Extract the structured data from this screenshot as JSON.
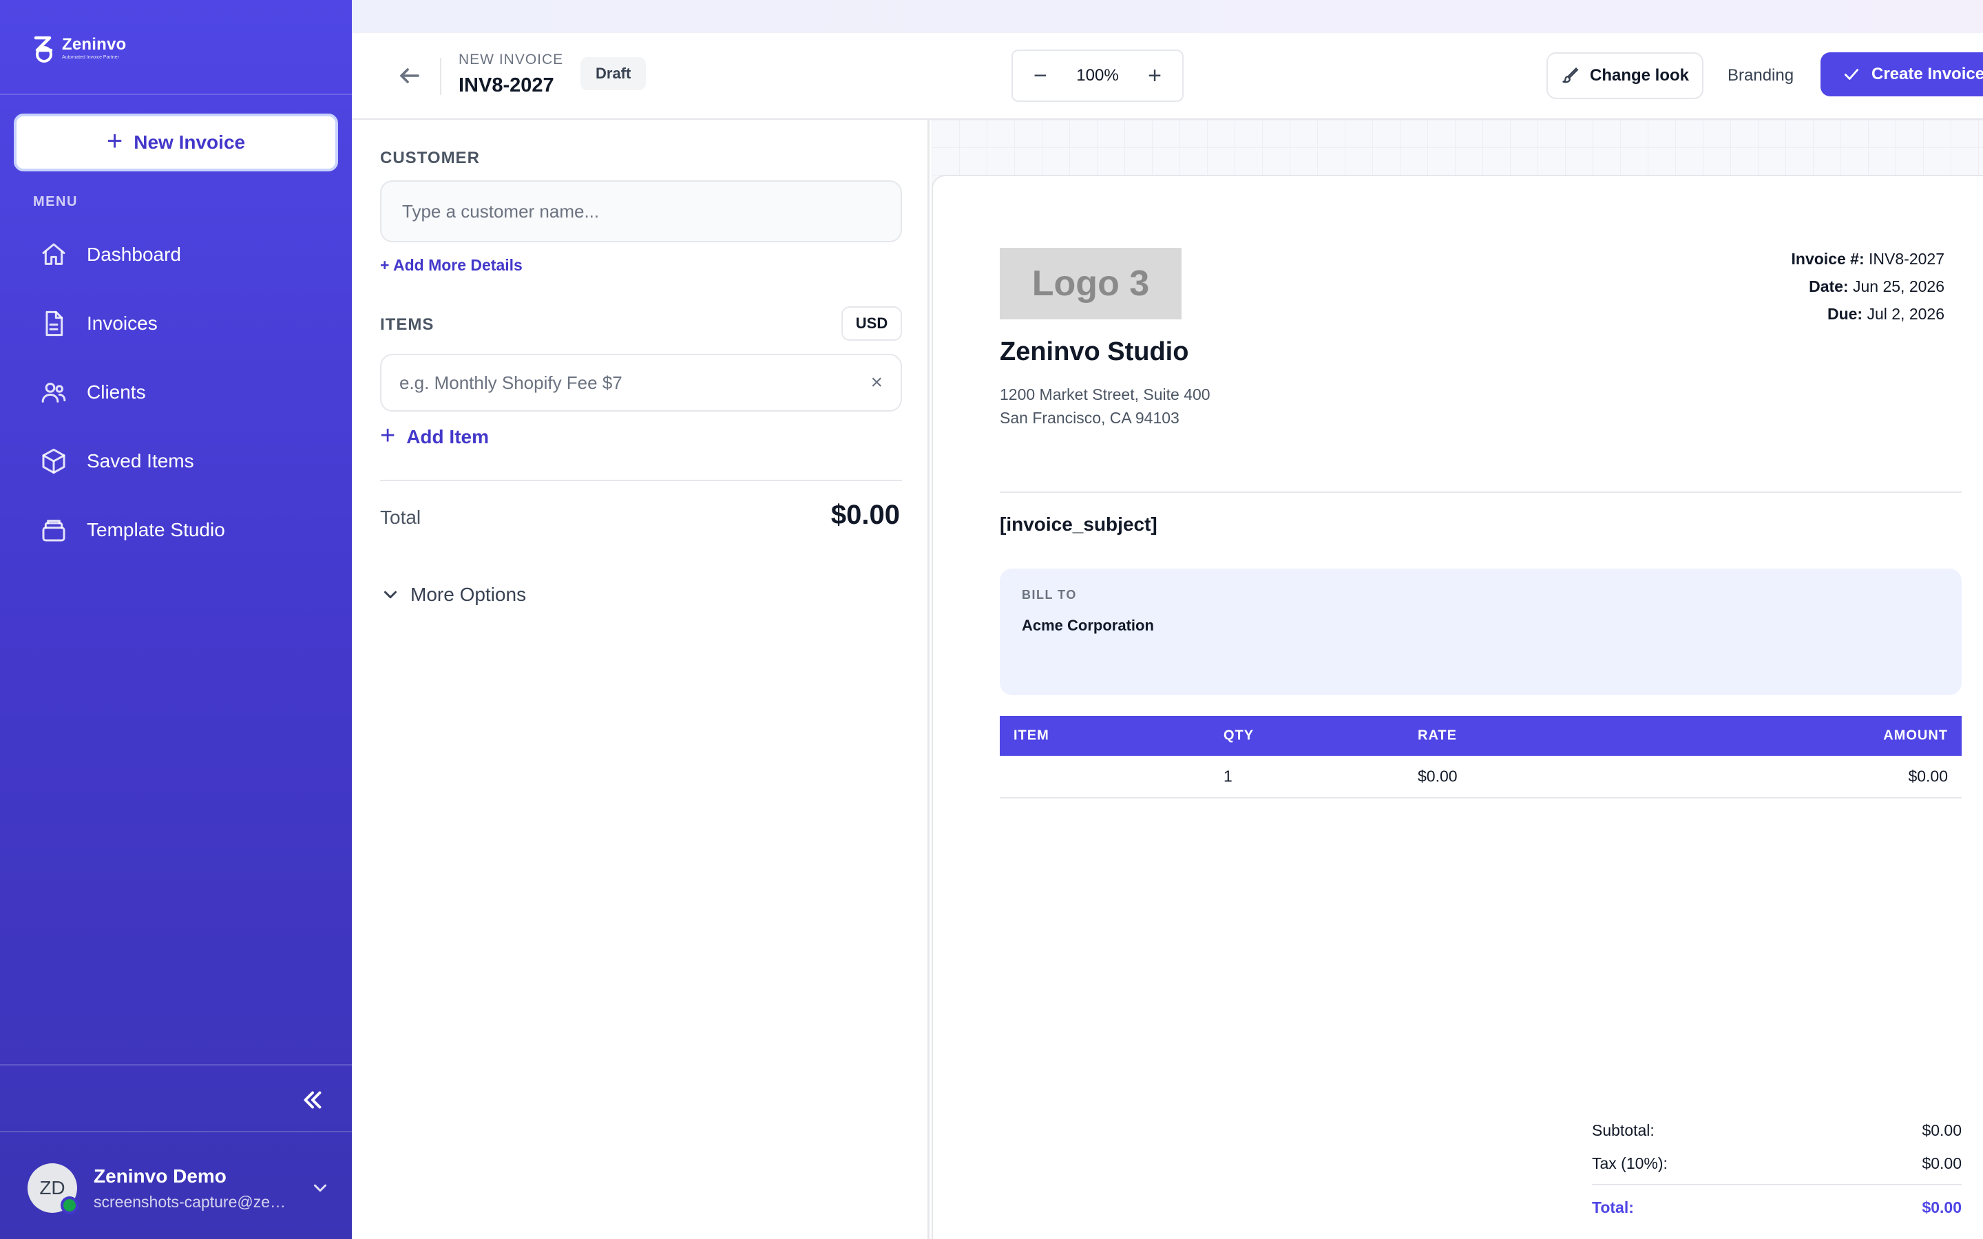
{
  "sidebar": {
    "brand_name": "Zeninvo",
    "brand_tagline": "Automated Invoice Partner",
    "new_invoice_label": "New Invoice",
    "menu_label": "MENU",
    "items": [
      {
        "label": "Dashboard",
        "icon": "home-icon"
      },
      {
        "label": "Invoices",
        "icon": "document-icon"
      },
      {
        "label": "Clients",
        "icon": "users-icon"
      },
      {
        "label": "Saved Items",
        "icon": "box-icon"
      },
      {
        "label": "Template Studio",
        "icon": "layers-icon"
      }
    ],
    "user": {
      "initials": "ZD",
      "name": "Zeninvo Demo",
      "email": "screenshots-capture@zeninvo.com"
    }
  },
  "header": {
    "subtitle": "NEW INVOICE",
    "title": "INV8-2027",
    "status_badge": "Draft",
    "zoom_minus": "−",
    "zoom_level": "100%",
    "zoom_plus": "+",
    "change_look_label": "Change look",
    "branding_label": "Branding",
    "create_label": "Create Invoice"
  },
  "form": {
    "customer_label": "CUSTOMER",
    "customer_placeholder": "Type a customer name...",
    "add_details_label": "+ Add More Details",
    "items_label": "ITEMS",
    "currency": "USD",
    "item_placeholder": "e.g. Monthly Shopify Fee $7",
    "clear_glyph": "×",
    "add_item_label": "Add Item",
    "total_label": "Total",
    "total_value": "$0.00",
    "more_options_label": "More Options"
  },
  "preview": {
    "logo_text": "Logo 3",
    "company_name": "Zeninvo Studio",
    "address_line1": "1200 Market Street, Suite 400",
    "address_line2": "San Francisco, CA 94103",
    "invoice_no_label": "Invoice #:",
    "invoice_no": "INV8-2027",
    "date_label": "Date:",
    "date": "Jun 25, 2026",
    "due_label": "Due:",
    "due": "Jul 2, 2026",
    "subject": "[invoice_subject]",
    "bill_to_label": "BILL TO",
    "bill_to_name": "Acme Corporation",
    "table_headers": {
      "item": "ITEM",
      "qty": "QTY",
      "rate": "RATE",
      "amount": "AMOUNT"
    },
    "rows": [
      {
        "item": "",
        "qty": "1",
        "rate": "$0.00",
        "amount": "$0.00"
      }
    ],
    "subtotal_label": "Subtotal:",
    "subtotal": "$0.00",
    "tax_label": "Tax (10%):",
    "tax": "$0.00",
    "total_label": "Total:",
    "total": "$0.00"
  },
  "colors": {
    "accent": "#4f46e5",
    "sidebar_bg": "#4338ca",
    "status_online": "#16a34a",
    "bill_to_bg": "#eef2ff"
  }
}
